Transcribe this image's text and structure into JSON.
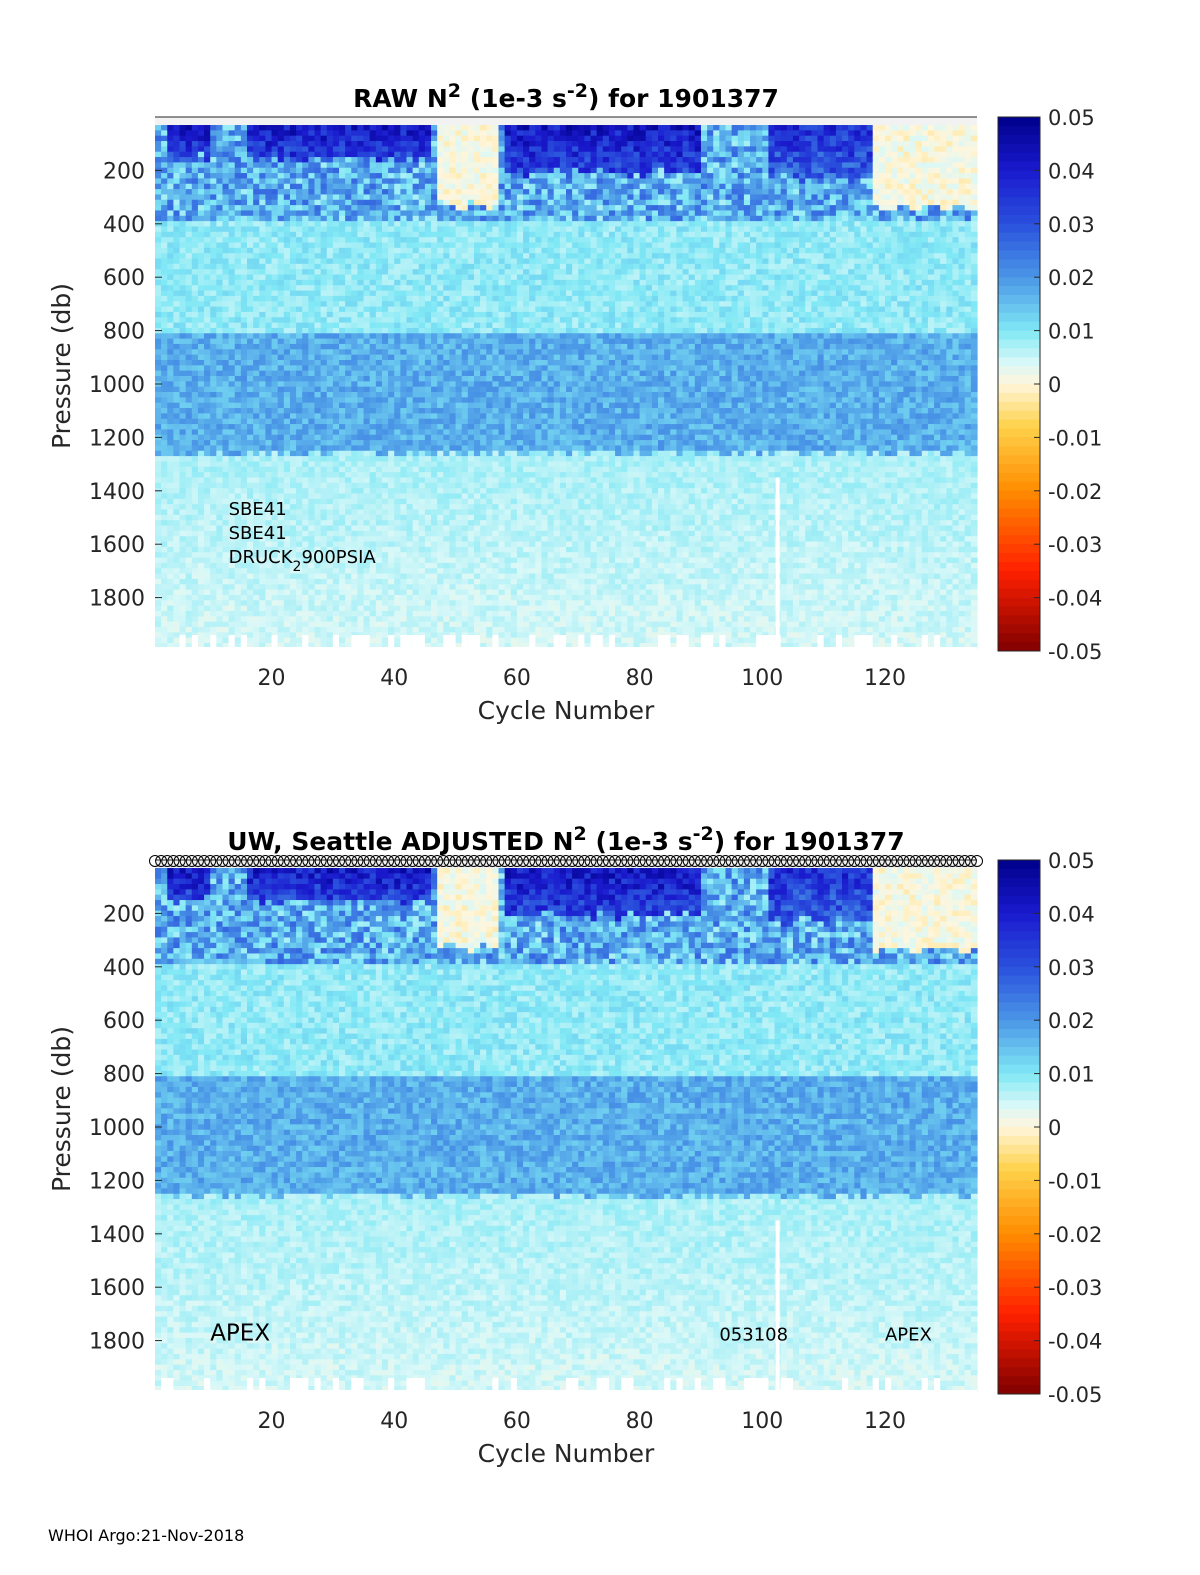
{
  "footer": "WHOI Argo:21-Nov-2018",
  "colormap": {
    "name": "jet-like diverging",
    "stops": [
      {
        "v": -0.05,
        "c": "#800000"
      },
      {
        "v": -0.035,
        "c": "#ff2000"
      },
      {
        "v": -0.02,
        "c": "#ff8c00"
      },
      {
        "v": -0.008,
        "c": "#ffd24a"
      },
      {
        "v": 0.0,
        "c": "#fff6dc"
      },
      {
        "v": 0.004,
        "c": "#d8f8f8"
      },
      {
        "v": 0.01,
        "c": "#80e8f5"
      },
      {
        "v": 0.02,
        "c": "#4a96e6"
      },
      {
        "v": 0.03,
        "c": "#2a50dd"
      },
      {
        "v": 0.04,
        "c": "#1a1acd"
      },
      {
        "v": 0.05,
        "c": "#00008c"
      }
    ]
  },
  "chart_data": [
    {
      "type": "heatmap",
      "title_main": "RAW N",
      "title_sup1": "2",
      "title_mid": " (1e-3 s",
      "title_sup2": "-2",
      "title_end": ") for 1901377",
      "xlabel": "Cycle Number",
      "ylabel": "Pressure (db)",
      "xlim": [
        1,
        135
      ],
      "ylim": [
        0,
        2000
      ],
      "y_reversed": true,
      "xticks": [
        20,
        40,
        60,
        80,
        100,
        120
      ],
      "yticks": [
        200,
        400,
        600,
        800,
        1000,
        1200,
        1400,
        1600,
        1800
      ],
      "clim": [
        -0.05,
        0.05
      ],
      "colorbar_ticks": [
        "0.05",
        "0.04",
        "0.03",
        "0.02",
        "0.01",
        "0",
        "-0.01",
        "-0.02",
        "-0.03",
        "-0.04",
        "-0.05"
      ],
      "annotations": [
        {
          "text": "SBE41",
          "x": 13,
          "y": 1490
        },
        {
          "text": "SBE41",
          "x": 13,
          "y": 1580
        },
        {
          "text": "DRUCK",
          "sub": "2",
          "tail": "900PSIA",
          "x": 13,
          "y": 1670
        }
      ],
      "top_markers": false,
      "missing_profile_cycle": 102.5,
      "missing_profile_from": 1350,
      "surface_stratification": [
        {
          "cycle_range": [
            3,
            10
          ],
          "pressure_top": 30,
          "pressure_bottom": 140,
          "value": 0.05
        },
        {
          "cycle_range": [
            16,
            46
          ],
          "pressure_top": 30,
          "pressure_bottom": 150,
          "value": 0.05
        },
        {
          "cycle_range": [
            47,
            57
          ],
          "pressure_top": 30,
          "pressure_bottom": 320,
          "value": 0.0
        },
        {
          "cycle_range": [
            58,
            90
          ],
          "pressure_top": 30,
          "pressure_bottom": 200,
          "value": 0.05
        },
        {
          "cycle_range": [
            101,
            118
          ],
          "pressure_top": 30,
          "pressure_bottom": 220,
          "value": 0.045
        },
        {
          "cycle_range": [
            118,
            135
          ],
          "pressure_top": 30,
          "pressure_bottom": 330,
          "value": 0.0
        }
      ],
      "intermediate_layer": {
        "pressure_range": [
          800,
          1250
        ],
        "value": 0.017
      },
      "deep_value": 0.007
    },
    {
      "type": "heatmap",
      "title_main": "UW, Seattle  ADJUSTED N",
      "title_sup1": "2",
      "title_mid": " (1e-3 s",
      "title_sup2": "-2",
      "title_end": ") for 1901377",
      "xlabel": "Cycle Number",
      "ylabel": "Pressure (db)",
      "xlim": [
        1,
        135
      ],
      "ylim": [
        0,
        2000
      ],
      "y_reversed": true,
      "xticks": [
        20,
        40,
        60,
        80,
        100,
        120
      ],
      "yticks": [
        200,
        400,
        600,
        800,
        1000,
        1200,
        1400,
        1600,
        1800
      ],
      "clim": [
        -0.05,
        0.05
      ],
      "colorbar_ticks": [
        "0.05",
        "0.04",
        "0.03",
        "0.02",
        "0.01",
        "0",
        "-0.01",
        "-0.02",
        "-0.03",
        "-0.04",
        "-0.05"
      ],
      "annotations": [
        {
          "text": "APEX",
          "x": 10,
          "y": 1800,
          "size": "large"
        },
        {
          "text": "053108",
          "x": 93,
          "y": 1800
        },
        {
          "text": "APEX",
          "x": 120,
          "y": 1800
        }
      ],
      "top_markers": true,
      "missing_profile_cycle": 102.5,
      "missing_profile_from": 1350,
      "surface_stratification": [
        {
          "cycle_range": [
            3,
            10
          ],
          "pressure_top": 30,
          "pressure_bottom": 140,
          "value": 0.05
        },
        {
          "cycle_range": [
            16,
            46
          ],
          "pressure_top": 30,
          "pressure_bottom": 150,
          "value": 0.05
        },
        {
          "cycle_range": [
            47,
            57
          ],
          "pressure_top": 30,
          "pressure_bottom": 320,
          "value": 0.0
        },
        {
          "cycle_range": [
            58,
            90
          ],
          "pressure_top": 30,
          "pressure_bottom": 200,
          "value": 0.05
        },
        {
          "cycle_range": [
            101,
            118
          ],
          "pressure_top": 30,
          "pressure_bottom": 220,
          "value": 0.045
        },
        {
          "cycle_range": [
            118,
            135
          ],
          "pressure_top": 30,
          "pressure_bottom": 330,
          "value": 0.0
        }
      ],
      "intermediate_layer": {
        "pressure_range": [
          800,
          1250
        ],
        "value": 0.017
      },
      "deep_value": 0.007
    }
  ]
}
